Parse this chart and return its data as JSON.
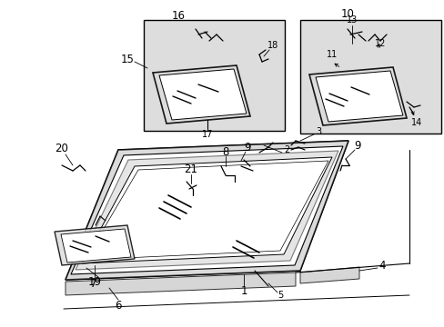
{
  "bg_color": "#ffffff",
  "line_color": "#000000",
  "gray_fill": "#cccccc",
  "light_gray": "#dddddd",
  "figure_width": 4.89,
  "figure_height": 3.6,
  "dpi": 100
}
